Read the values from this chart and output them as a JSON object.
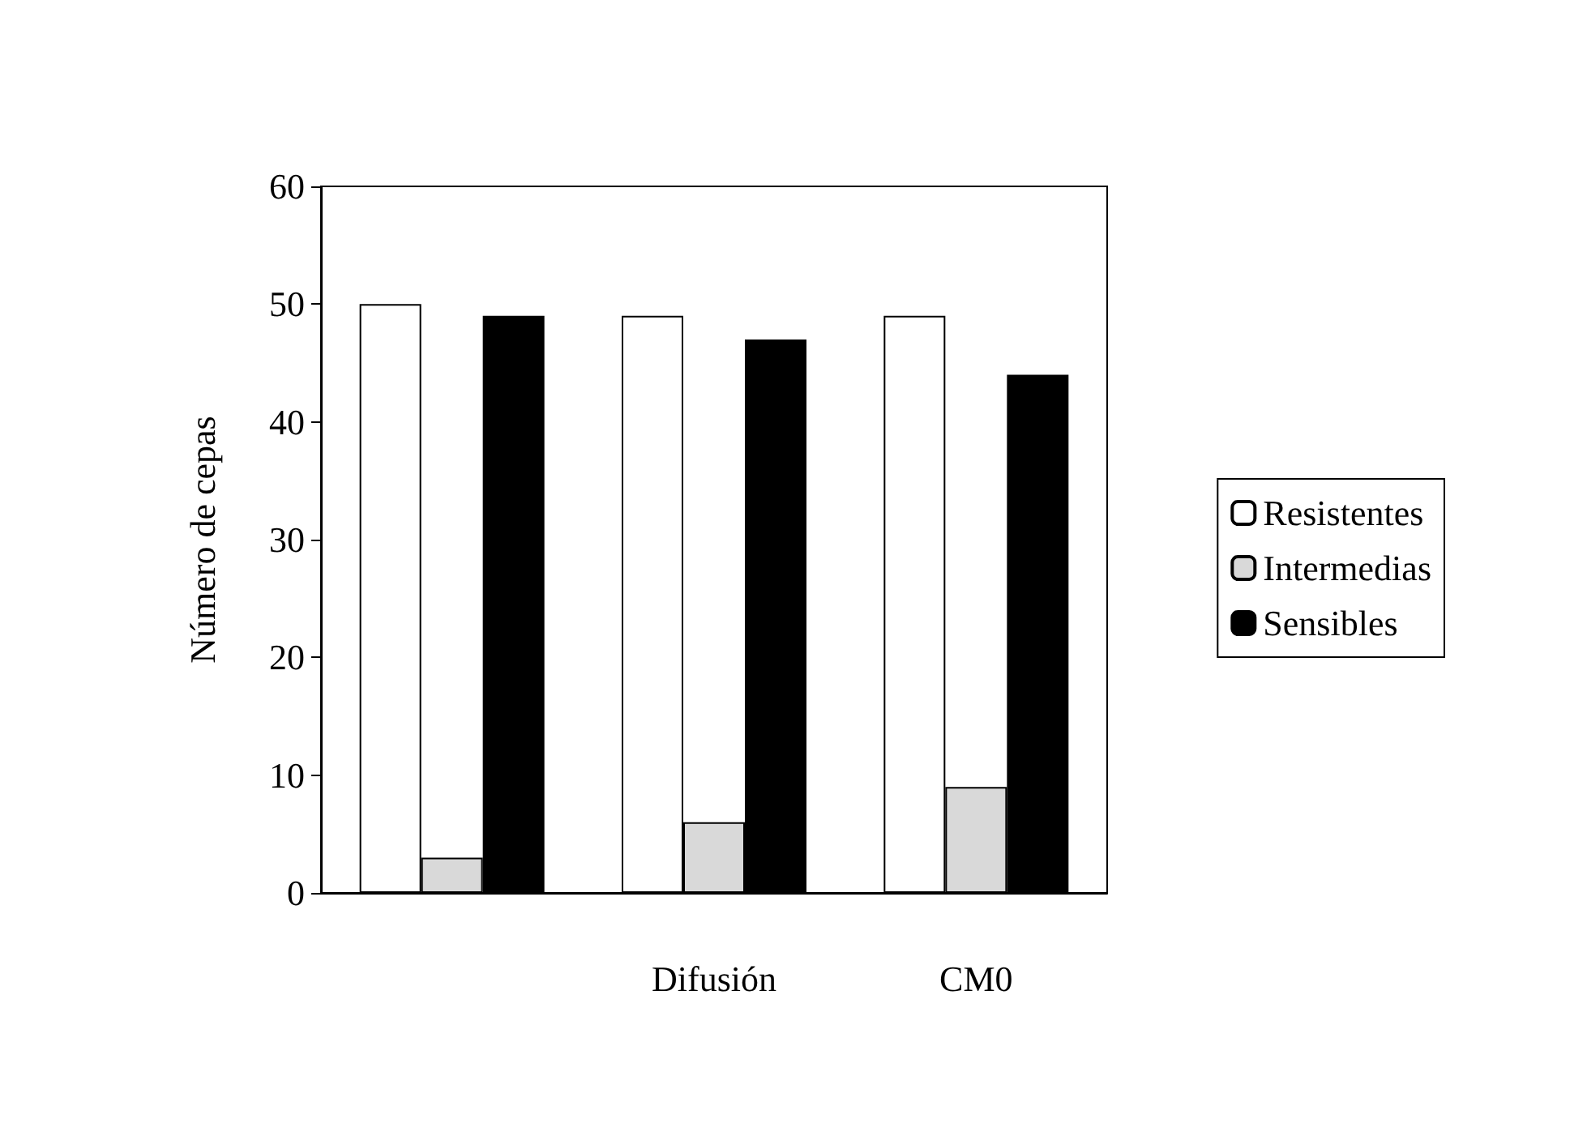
{
  "chart_data": {
    "type": "bar",
    "ylabel": "Número de cepas",
    "categories": [
      null,
      "Difusión",
      "CM0"
    ],
    "series": [
      {
        "name": "Resistentes",
        "color": "#ffffff",
        "values": [
          50,
          49,
          49
        ]
      },
      {
        "name": "Intermedias",
        "color": "#d9d9d9",
        "values": [
          3,
          6,
          9
        ]
      },
      {
        "name": "Sensibles",
        "color": "#000000",
        "values": [
          49,
          47,
          44
        ]
      }
    ],
    "ylim": [
      0,
      60
    ],
    "yticks": [
      0,
      10,
      20,
      30,
      40,
      50,
      60
    ],
    "grid": false,
    "legend": "right"
  }
}
